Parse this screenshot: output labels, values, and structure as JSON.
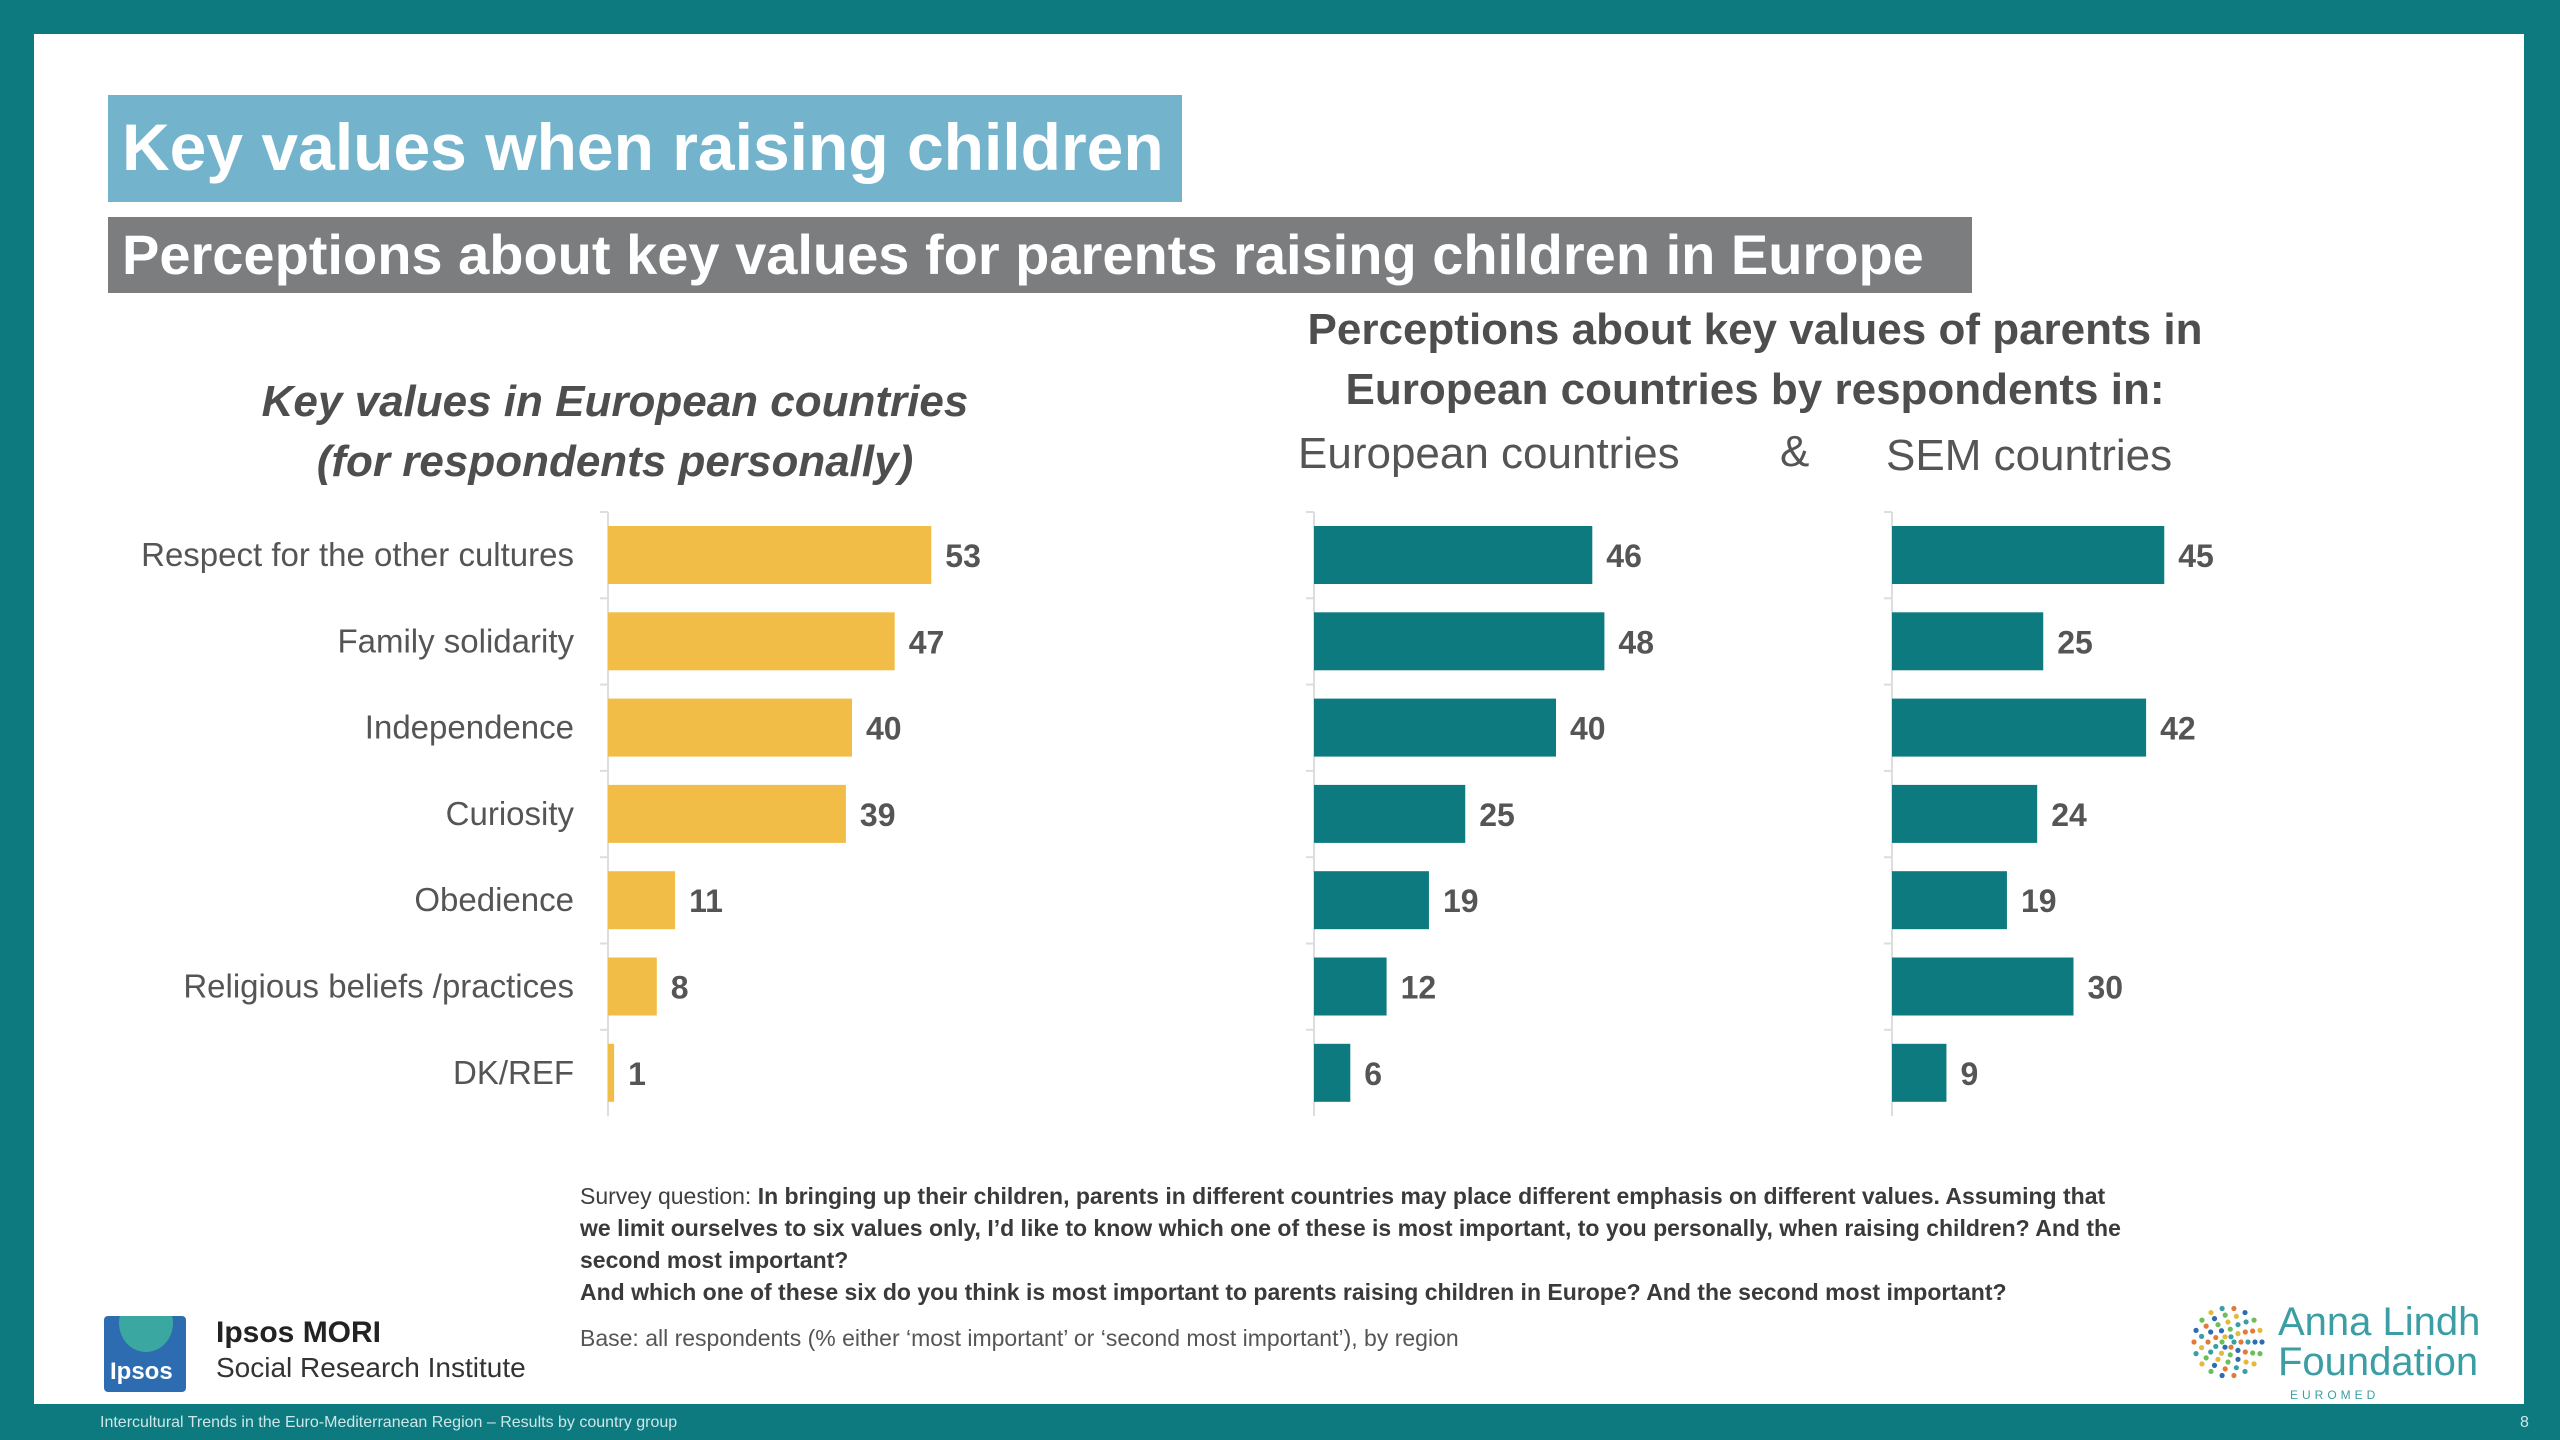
{
  "title": "Key values when raising children",
  "subtitle": "Perceptions about key values for parents raising children in Europe",
  "left_heading": [
    "Key values in European countries",
    "(for respondents personally)"
  ],
  "right_heading": [
    "Perceptions about key values of parents in",
    "European countries by respondents in:"
  ],
  "col_european": "European countries",
  "ampersand": "&",
  "col_sem": "SEM countries",
  "colors": {
    "personal": "#f2bd47",
    "perception": "#0d7a80",
    "teal_frame": "#0d7a80",
    "title_bg": "#74b3cc",
    "subtitle_bg": "#7b7d7f"
  },
  "chart_data": [
    {
      "type": "bar",
      "orientation": "horizontal",
      "title": "Key values in European countries (for respondents personally)",
      "categories": [
        "Respect for the other cultures",
        "Family solidarity",
        "Independence",
        "Curiosity",
        "Obedience",
        "Religious beliefs /practices",
        "DK/REF"
      ],
      "values": [
        53,
        47,
        40,
        39,
        11,
        8,
        1
      ]
    },
    {
      "type": "bar",
      "orientation": "horizontal",
      "title": "European countries",
      "categories": [
        "Respect for the other cultures",
        "Family solidarity",
        "Independence",
        "Curiosity",
        "Obedience",
        "Religious beliefs /practices",
        "DK/REF"
      ],
      "values": [
        46,
        48,
        40,
        25,
        19,
        12,
        6
      ]
    },
    {
      "type": "bar",
      "orientation": "horizontal",
      "title": "SEM countries",
      "categories": [
        "Respect for the other cultures",
        "Family solidarity",
        "Independence",
        "Curiosity",
        "Obedience",
        "Religious beliefs /practices",
        "DK/REF"
      ],
      "values": [
        45,
        25,
        42,
        24,
        19,
        30,
        9
      ]
    }
  ],
  "note": {
    "prefix": "Survey question: ",
    "question": "In bringing up their children, parents in different countries may place different emphasis on different values. Assuming that we limit ourselves to six values only, I’d like to know which one of these is most important, to you personally, when raising children? And the second most important?",
    "question2": "And which one of these six do you think is most important to parents raising children in Europe? And the second most important?"
  },
  "base": "Base: all respondents (% either ‘most important’ or ‘second most important’), by region",
  "ipsos": {
    "logo_text": "Ipsos",
    "name": "Ipsos MORI",
    "sub": "Social Research Institute"
  },
  "alf": {
    "line1": "Anna Lindh",
    "line2": "Foundation",
    "sub": "EUROMED"
  },
  "footer": "Intercultural Trends in the Euro-Mediterranean Region – Results by country group",
  "page_number": "8"
}
